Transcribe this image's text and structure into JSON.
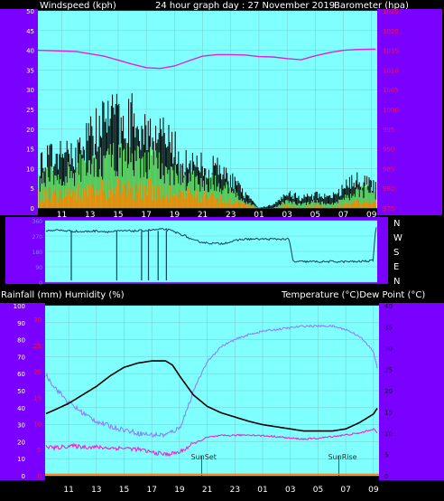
{
  "header": {
    "left_label": "Windspeed (kph)",
    "center_label": "24 hour graph day : 27 November 2019",
    "right_label": "Barometer (hpa)"
  },
  "bottom_header": {
    "left_label": "Rainfall (mm)  Humidity (%)",
    "right_label": "Temperature (°C)Dew Point (°C)"
  },
  "colors": {
    "frame": "#7a00ff",
    "plot_bg": "#80ffff",
    "baro": "#e020e0",
    "wind_gust": "#000000",
    "wind_avg": "#60e060",
    "wind_low": "#ff8c00",
    "dir": "#104060",
    "temp": "#000000",
    "humidity": "#8a7aff",
    "dewpoint": "#ff10d0",
    "rain": "#ff7a00",
    "left_axis_text": "#ffffff",
    "right_axis_text": "#ff1040",
    "bottom_right_axis_text": "#111111"
  },
  "chart_data": [
    {
      "type": "line",
      "id": "wind_baro",
      "title": "24 hour graph day : 27 November 2019",
      "ylabel": "Windspeed (kph)",
      "y2label": "Barometer (hpa)",
      "ylim": [
        0,
        50
      ],
      "y2lim": [
        975,
        1025
      ],
      "yticks": [
        "0",
        "5",
        "10",
        "15",
        "20",
        "25",
        "30",
        "35",
        "40",
        "45",
        "50"
      ],
      "y2ticks": [
        "975",
        "980",
        "985",
        "990",
        "995",
        "1000",
        "1005",
        "1010",
        "1015",
        "1020",
        "1025"
      ],
      "xticks": [
        "11",
        "13",
        "15",
        "17",
        "19",
        "21",
        "23",
        "01",
        "03",
        "05",
        "07",
        "09"
      ],
      "x_start_hour": 9.3,
      "x_end_hour": 33.4,
      "grid": true,
      "series": [
        {
          "name": "Barometer (hpa)",
          "axis": "right",
          "x": [
            9.3,
            12,
            14,
            16,
            17,
            18,
            19,
            20,
            21,
            22,
            23,
            24,
            25,
            26,
            27,
            28,
            29,
            30,
            31,
            32,
            33.3
          ],
          "y": [
            1015,
            1014.7,
            1013.5,
            1011.5,
            1010.6,
            1010.4,
            1011,
            1012.3,
            1013.5,
            1013.9,
            1013.9,
            1013.8,
            1013.4,
            1013.3,
            1012.9,
            1012.6,
            1013.6,
            1014.4,
            1015,
            1015.2,
            1015.3
          ]
        },
        {
          "name": "Gust",
          "axis": "left",
          "x": [
            9.3,
            10,
            11,
            12,
            13,
            14,
            15,
            16,
            17,
            18,
            19,
            20,
            21,
            22,
            23,
            24,
            25,
            26,
            27,
            28,
            29,
            30,
            31,
            32,
            33,
            33.3
          ],
          "y": [
            14,
            15,
            16,
            17,
            22,
            26,
            28,
            27,
            24,
            22,
            18,
            13,
            13,
            12,
            9,
            4,
            0,
            1,
            5,
            3,
            4,
            3,
            6,
            9,
            8,
            6
          ]
        },
        {
          "name": "Average",
          "axis": "left",
          "x": [
            9.3,
            10,
            11,
            12,
            13,
            14,
            15,
            16,
            17,
            18,
            19,
            20,
            21,
            22,
            23,
            24,
            25,
            26,
            27,
            28,
            29,
            30,
            31,
            32,
            33,
            33.3
          ],
          "y": [
            8,
            9,
            10,
            11,
            13,
            14,
            15,
            15,
            14,
            12,
            10,
            8,
            8,
            7,
            5,
            2,
            0,
            0,
            2,
            1,
            2,
            1,
            3,
            5,
            5,
            4
          ]
        },
        {
          "name": "Low",
          "axis": "left",
          "x": [
            9.3,
            10,
            11,
            12,
            13,
            14,
            15,
            16,
            17,
            18,
            19,
            20,
            21,
            22,
            23,
            24,
            25,
            26,
            27,
            28,
            29,
            30,
            31,
            32,
            33,
            33.3
          ],
          "y": [
            4,
            4,
            5,
            5,
            5,
            6,
            6,
            6,
            6,
            5,
            5,
            4,
            4,
            3,
            2,
            1,
            0,
            0,
            1,
            0,
            1,
            0,
            1,
            2,
            2,
            2
          ]
        }
      ]
    },
    {
      "type": "line",
      "id": "wind_direction",
      "y2ticks": [
        "N",
        "W",
        "S",
        "E",
        "N"
      ],
      "yticks": [
        "0",
        "90",
        "180",
        "270",
        "360"
      ],
      "ylim": [
        0,
        360
      ],
      "series": [
        {
          "name": "Direction",
          "x": [
            9.3,
            10,
            11,
            12,
            13,
            14,
            15,
            16,
            17,
            18,
            18.5,
            19,
            19.5,
            20,
            21,
            22,
            22.5,
            23,
            23.5,
            24,
            25,
            26,
            27,
            27.3,
            28,
            29,
            30,
            31,
            32,
            33,
            33.1,
            33.3
          ],
          "y": [
            300,
            305,
            300,
            295,
            300,
            295,
            300,
            300,
            305,
            310,
            300,
            285,
            270,
            245,
            230,
            225,
            232,
            240,
            250,
            252,
            252,
            252,
            252,
            120,
            120,
            120,
            120,
            120,
            120,
            125,
            130,
            325
          ]
        }
      ],
      "dropouts": [
        11.2,
        14.5,
        16.3,
        16.8,
        17.5,
        18.1
      ]
    },
    {
      "type": "line",
      "id": "temp_hum",
      "ylabel": "Rainfall (mm)  Humidity (%)",
      "y2label": "Temperature (°C)Dew Point (°C)",
      "ylim": [
        0,
        100
      ],
      "y2lim": [
        0,
        40
      ],
      "yticks": [
        "0",
        "10",
        "20",
        "30",
        "40",
        "50",
        "60",
        "70",
        "80",
        "90",
        "100"
      ],
      "yticks_rain": [
        "0",
        "5",
        "10",
        "15",
        "20",
        "25",
        "30"
      ],
      "y2ticks": [
        "0",
        "5",
        "10",
        "15",
        "20",
        "25",
        "30",
        "35",
        "40"
      ],
      "xticks": [
        "11",
        "13",
        "15",
        "17",
        "19",
        "21",
        "23",
        "01",
        "03",
        "05",
        "07",
        "09"
      ],
      "annotations": [
        {
          "text": "SunSet",
          "x": 20.6
        },
        {
          "text": "SunRise",
          "x": 30.5
        }
      ],
      "series": [
        {
          "name": "Temperature (°C)",
          "axis": "right",
          "x": [
            9.3,
            10,
            11,
            12,
            13,
            14,
            15,
            16,
            17,
            18,
            18.5,
            19,
            20,
            21,
            22,
            23,
            24,
            25,
            26,
            27,
            28,
            29,
            30,
            31,
            32,
            33,
            33.3
          ],
          "y": [
            14.5,
            15.5,
            17,
            19,
            21,
            23.5,
            25.5,
            26.5,
            27,
            27,
            26,
            23.5,
            19,
            16.3,
            14.8,
            13.8,
            12.8,
            12,
            11.5,
            11,
            10.5,
            10.5,
            10.5,
            11,
            12.5,
            14.5,
            16
          ]
        },
        {
          "name": "Humidity (%)",
          "axis": "left",
          "x": [
            9.3,
            10,
            11,
            12,
            13,
            14,
            15,
            16,
            17,
            18,
            19,
            19.5,
            20,
            21,
            22,
            23,
            24,
            25,
            26,
            27,
            28,
            29,
            30,
            31,
            32,
            33,
            33.3
          ],
          "y": [
            60,
            52,
            43,
            37,
            32,
            29,
            27,
            25,
            24,
            24,
            28,
            38,
            50,
            67,
            76,
            80,
            83,
            85,
            86,
            87,
            88,
            88,
            88,
            86,
            82,
            73,
            62
          ]
        },
        {
          "name": "Dew Point (°C)",
          "axis": "right",
          "x": [
            9.3,
            10,
            11,
            12,
            13,
            14,
            15,
            16,
            17,
            18,
            19,
            20,
            21,
            22,
            23,
            24,
            25,
            26,
            27,
            28,
            29,
            30,
            31,
            32,
            33,
            33.3
          ],
          "y": [
            7,
            6.5,
            7,
            6.8,
            6.7,
            6.5,
            6.5,
            6.2,
            5.5,
            5,
            5.5,
            7.5,
            9,
            9.4,
            9.5,
            9.6,
            9.4,
            9.2,
            8.8,
            8.6,
            8.8,
            9.2,
            9.6,
            10,
            11,
            10
          ]
        },
        {
          "name": "Rainfall (mm)",
          "axis": "rain",
          "x": [
            9.3,
            33.3
          ],
          "y": [
            0.4,
            0.4
          ]
        }
      ]
    }
  ]
}
